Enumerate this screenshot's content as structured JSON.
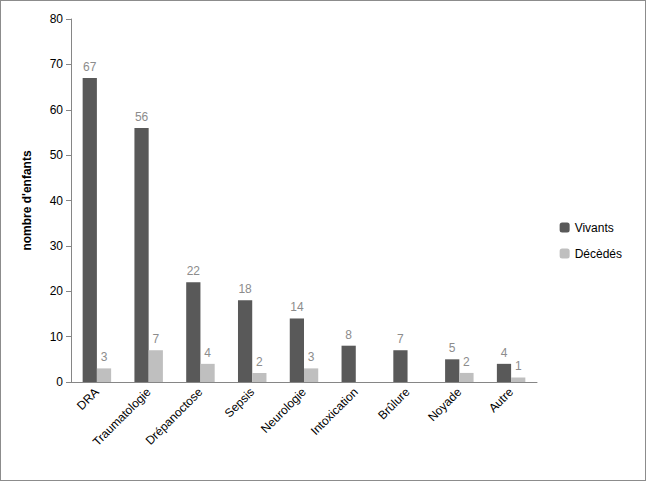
{
  "chart_data": {
    "type": "bar",
    "y_label": "nombre d'enfants",
    "categories": [
      "DRA",
      "Traumatologie",
      "Drépanoctose",
      "Sepsis",
      "Neurologie",
      "Intoxication",
      "Brûlure",
      "Noyade",
      "Autre"
    ],
    "series": [
      {
        "name": "Vivants",
        "color": "#595959",
        "values": [
          67,
          56,
          22,
          18,
          14,
          8,
          7,
          5,
          4
        ]
      },
      {
        "name": "Décèdés",
        "color": "#bfbfbf",
        "values": [
          3,
          7,
          4,
          2,
          3,
          null,
          null,
          2,
          1
        ]
      }
    ],
    "ylim": [
      0,
      80
    ],
    "yticks": [
      0,
      10,
      20,
      30,
      40,
      50,
      60,
      70,
      80
    ],
    "grid": false,
    "legend": "right",
    "data_labels": true
  }
}
